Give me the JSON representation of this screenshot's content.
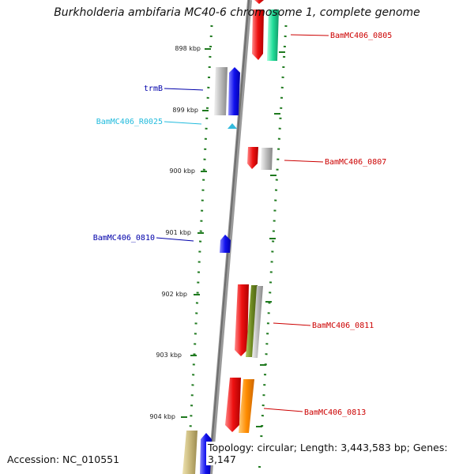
{
  "title": "Burkholderia ambifaria MC40-6 chromosome 1, complete genome",
  "footer": {
    "accession": "Accession: NC_010551",
    "topology": "Topology: circular; Length: 3,443,583 bp; Genes: 3,147"
  },
  "ticks": [
    "898 kbp",
    "899 kbp",
    "900 kbp",
    "901 kbp",
    "902 kbp",
    "903 kbp",
    "904 kbp"
  ],
  "gene_labels": {
    "BamMC406_0805": "BamMC406_0805",
    "trmB": "trmB",
    "BamMC406_R0025": "BamMC406_R0025",
    "BamMC406_0807": "BamMC406_0807",
    "BamMC406_0810": "BamMC406_0810",
    "BamMC406_0811": "BamMC406_0811",
    "BamMC406_0813": "BamMC406_0813"
  },
  "colors": {
    "backbone": "#8a8a8a",
    "tick": "#1f7a1f",
    "red": "#ee1111",
    "blue": "#1111ee",
    "gray": "#bbbbbb",
    "teal": "#22dd99",
    "olive": "#6e8a22",
    "orange": "#ff8c00",
    "khaki": "#c8b87a",
    "label_red": "#cc0000",
    "label_blue": "#0000aa",
    "label_cyan": "#22bbdd"
  }
}
